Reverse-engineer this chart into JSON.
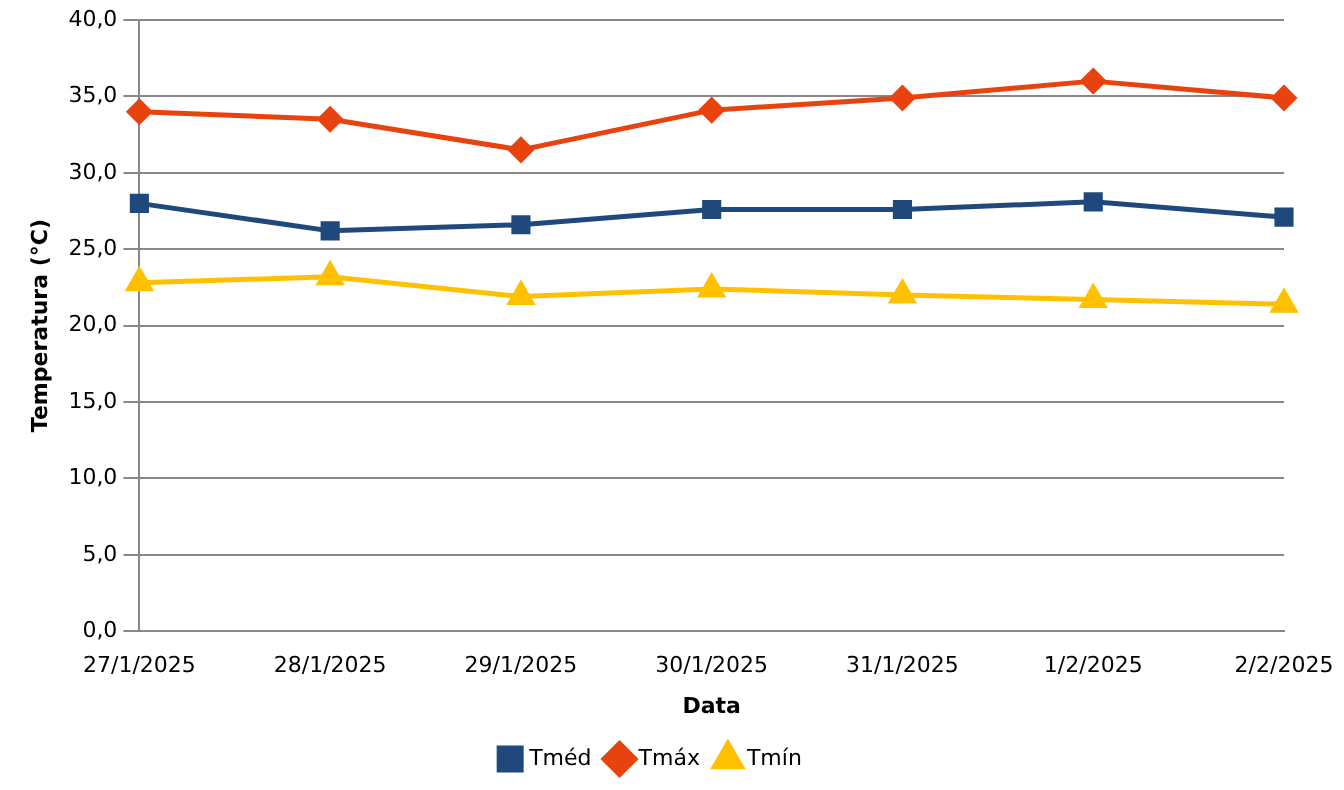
{
  "chart_data": {
    "type": "line",
    "xlabel": "Data",
    "ylabel": "Temperatura (°C)",
    "categories": [
      "27/1/2025",
      "28/1/2025",
      "29/1/2025",
      "30/1/2025",
      "31/1/2025",
      "1/2/2025",
      "2/2/2025"
    ],
    "series": [
      {
        "name": "Tméd",
        "color": "#1f497d",
        "marker": "square",
        "values": [
          28.0,
          26.2,
          26.6,
          27.6,
          27.6,
          28.1,
          27.1
        ]
      },
      {
        "name": "Tmáx",
        "color": "#e8420e",
        "marker": "diamond",
        "values": [
          34.0,
          33.5,
          31.5,
          34.1,
          34.9,
          36.0,
          34.9
        ]
      },
      {
        "name": "Tmín",
        "color": "#ffc000",
        "marker": "triangle",
        "values": [
          22.8,
          23.2,
          21.9,
          22.4,
          22.0,
          21.7,
          21.4
        ]
      }
    ],
    "ylim": [
      0,
      40
    ],
    "yticks": [
      {
        "value": 0,
        "label": "0,0"
      },
      {
        "value": 5,
        "label": "5,0"
      },
      {
        "value": 10,
        "label": "10,0"
      },
      {
        "value": 15,
        "label": "15,0"
      },
      {
        "value": 20,
        "label": "20,0"
      },
      {
        "value": 25,
        "label": "25,0"
      },
      {
        "value": 30,
        "label": "30,0"
      },
      {
        "value": 35,
        "label": "35,0"
      },
      {
        "value": 40,
        "label": "40,0"
      }
    ],
    "grid": "y",
    "legend": "bottom",
    "line_style": "solid"
  }
}
